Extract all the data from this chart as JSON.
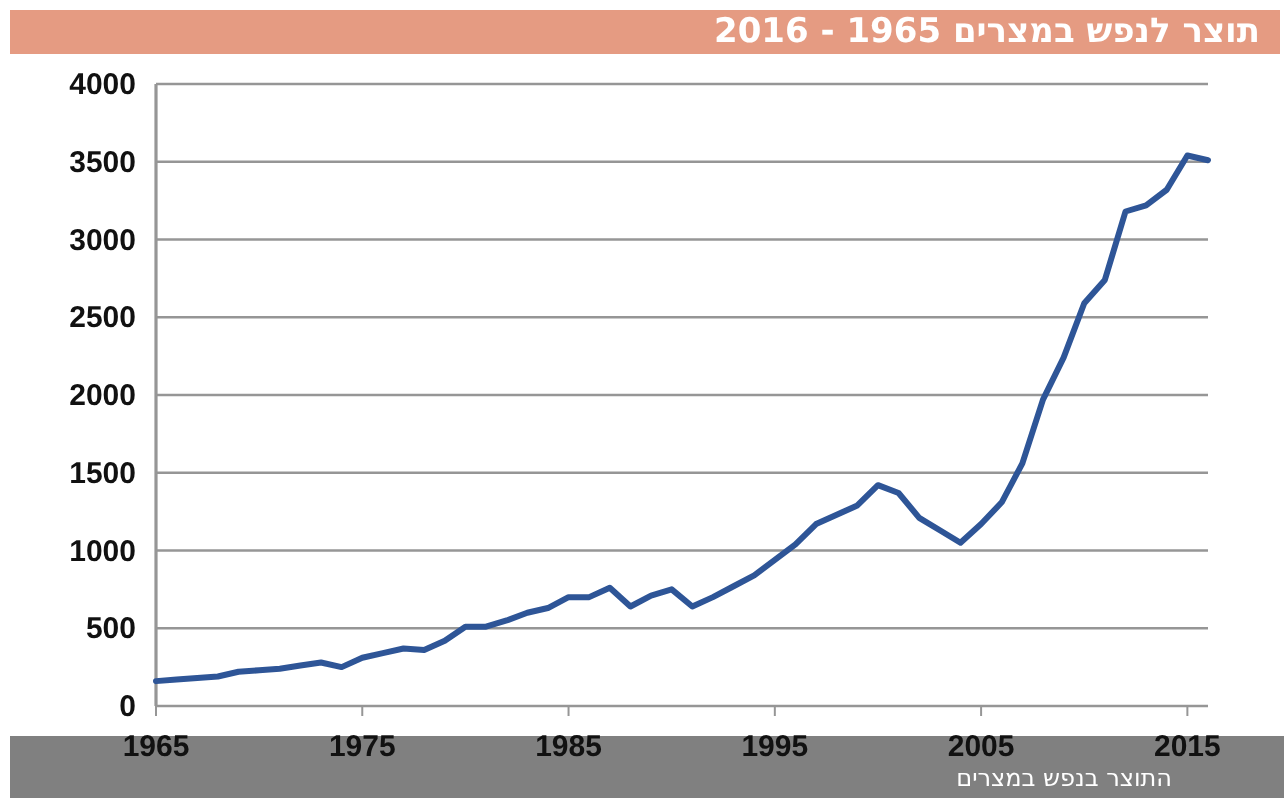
{
  "chart_data": {
    "type": "line",
    "title": "תוצר לנפש במצרים 1965 - 2016",
    "x": [
      1965,
      1966,
      1967,
      1968,
      1969,
      1970,
      1971,
      1972,
      1973,
      1974,
      1975,
      1976,
      1977,
      1978,
      1979,
      1980,
      1981,
      1982,
      1983,
      1984,
      1985,
      1986,
      1987,
      1988,
      1989,
      1990,
      1991,
      1992,
      1993,
      1994,
      1995,
      1996,
      1997,
      1998,
      1999,
      2000,
      2001,
      2002,
      2003,
      2004,
      2005,
      2006,
      2007,
      2008,
      2009,
      2010,
      2011,
      2012,
      2013,
      2014,
      2015,
      2016
    ],
    "series": [
      {
        "color": "#2e5597",
        "values": [
          160,
          170,
          180,
          190,
          220,
          230,
          240,
          260,
          280,
          250,
          310,
          340,
          370,
          360,
          420,
          510,
          510,
          550,
          600,
          630,
          700,
          700,
          760,
          640,
          710,
          750,
          640,
          700,
          770,
          840,
          940,
          1040,
          1170,
          1230,
          1290,
          1420,
          1370,
          1210,
          1130,
          1050,
          1170,
          1310,
          1560,
          1970,
          2240,
          2590,
          2740,
          3180,
          3220,
          3320,
          3540,
          3510
        ]
      }
    ],
    "xlim": [
      1965,
      2016
    ],
    "xticks": [
      1965,
      1975,
      1985,
      1995,
      2005,
      2015
    ],
    "ylim": [
      0,
      4000
    ],
    "yticks": [
      0,
      500,
      1000,
      1500,
      2000,
      2500,
      3000,
      3500,
      4000
    ],
    "grid": "y",
    "marker": "none",
    "line_style": "solid",
    "annotations": [
      "התוצר בנפש במצרים"
    ]
  }
}
